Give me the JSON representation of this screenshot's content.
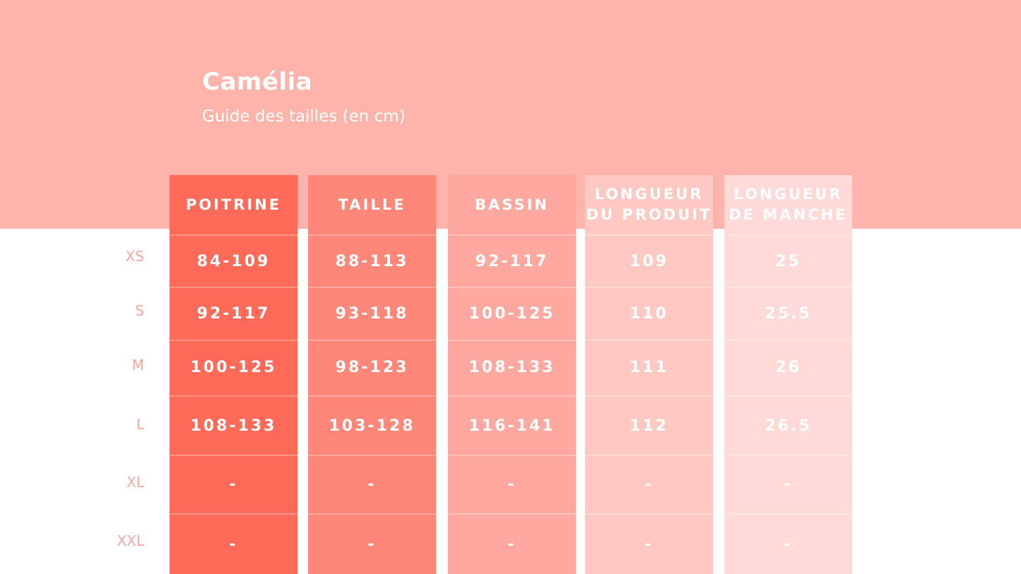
{
  "header": {
    "title": "Camélia",
    "subtitle": "Guide des tailles (en cm)"
  },
  "colors": {
    "header_background": "#ffb4ab",
    "size_label": "#f7a79e",
    "text": "#ffffff"
  },
  "sizes": [
    "XS",
    "S",
    "M",
    "L",
    "XL",
    "XXL"
  ],
  "columns": [
    {
      "header": "POITRINE",
      "color": "#ff6b58",
      "values": [
        "84-109",
        "92-117",
        "100-125",
        "108-133",
        "-",
        "-"
      ]
    },
    {
      "header": "TAILLE",
      "color": "#ff877a",
      "values": [
        "88-113",
        "93-118",
        "98-123",
        "103-128",
        "-",
        "-"
      ]
    },
    {
      "header": "BASSIN",
      "color": "#ffa89f",
      "values": [
        "92-117",
        "100-125",
        "108-133",
        "116-141",
        "-",
        "-"
      ]
    },
    {
      "header": "LONGUEUR\nDU PRODUIT",
      "color": "#ffc9c3",
      "values": [
        "109",
        "110",
        "111",
        "112",
        "-",
        "-"
      ]
    },
    {
      "header": "LONGUEUR\nDE MANCHE",
      "color": "#ffdad6",
      "values": [
        "25",
        "25.5",
        "26",
        "26.5",
        "-",
        "-"
      ]
    }
  ]
}
